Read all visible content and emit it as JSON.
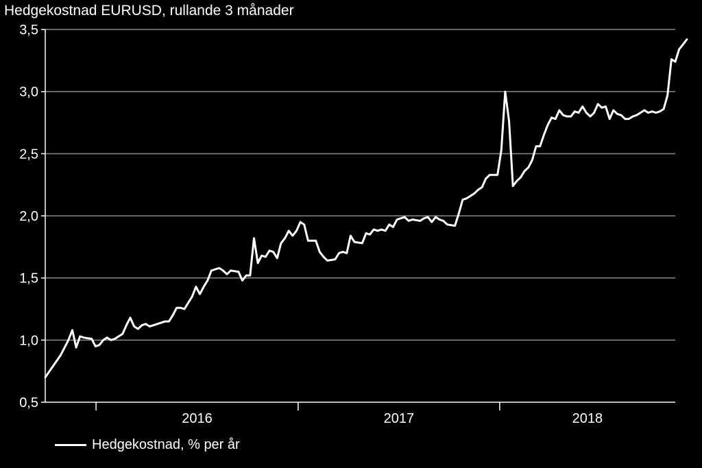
{
  "chart_data": {
    "type": "line",
    "title": "Hedgekostnad EURUSD, rullande 3 månader",
    "xlabel": "",
    "ylabel": "",
    "xlim": [
      "2015-10-01",
      "2018-11-15"
    ],
    "ylim": [
      0.5,
      3.5
    ],
    "y_ticks": [
      "0,5",
      "1,0",
      "1,5",
      "2,0",
      "2,5",
      "3,0",
      "3,5"
    ],
    "x_ticks": [
      "2016",
      "2017",
      "2018"
    ],
    "grid": "horizontal",
    "legend_placement": "bottom-left",
    "colors": {
      "background": "#000000",
      "line": "#ffffff",
      "grid": "#8c8c8c"
    },
    "series": [
      {
        "name": "Hedgekostnad, % per år",
        "points": [
          [
            "2015-10-01",
            0.7
          ],
          [
            "2015-10-15",
            0.79
          ],
          [
            "2015-10-29",
            0.88
          ],
          [
            "2015-11-12",
            1.0
          ],
          [
            "2015-11-19",
            1.08
          ],
          [
            "2015-11-26",
            0.94
          ],
          [
            "2015-12-03",
            1.03
          ],
          [
            "2015-12-10",
            1.02
          ],
          [
            "2015-12-24",
            1.01
          ],
          [
            "2015-12-31",
            0.95
          ],
          [
            "2016-01-07",
            0.96
          ],
          [
            "2016-01-14",
            1.0
          ],
          [
            "2016-01-21",
            1.02
          ],
          [
            "2016-01-28",
            1.0
          ],
          [
            "2016-02-04",
            1.01
          ],
          [
            "2016-02-11",
            1.03
          ],
          [
            "2016-02-18",
            1.05
          ],
          [
            "2016-02-25",
            1.12
          ],
          [
            "2016-03-03",
            1.18
          ],
          [
            "2016-03-10",
            1.11
          ],
          [
            "2016-03-17",
            1.09
          ],
          [
            "2016-03-24",
            1.12
          ],
          [
            "2016-03-31",
            1.13
          ],
          [
            "2016-04-07",
            1.11
          ],
          [
            "2016-04-21",
            1.13
          ],
          [
            "2016-05-05",
            1.15
          ],
          [
            "2016-05-12",
            1.15
          ],
          [
            "2016-05-19",
            1.2
          ],
          [
            "2016-05-26",
            1.26
          ],
          [
            "2016-06-02",
            1.26
          ],
          [
            "2016-06-09",
            1.25
          ],
          [
            "2016-06-16",
            1.3
          ],
          [
            "2016-06-23",
            1.35
          ],
          [
            "2016-06-30",
            1.43
          ],
          [
            "2016-07-07",
            1.37
          ],
          [
            "2016-07-14",
            1.43
          ],
          [
            "2016-07-21",
            1.48
          ],
          [
            "2016-07-28",
            1.56
          ],
          [
            "2016-08-04",
            1.57
          ],
          [
            "2016-08-11",
            1.58
          ],
          [
            "2016-08-18",
            1.56
          ],
          [
            "2016-08-25",
            1.53
          ],
          [
            "2016-09-01",
            1.56
          ],
          [
            "2016-09-15",
            1.55
          ],
          [
            "2016-09-22",
            1.48
          ],
          [
            "2016-09-29",
            1.52
          ],
          [
            "2016-10-06",
            1.52
          ],
          [
            "2016-10-13",
            1.82
          ],
          [
            "2016-10-20",
            1.62
          ],
          [
            "2016-10-27",
            1.68
          ],
          [
            "2016-11-03",
            1.67
          ],
          [
            "2016-11-10",
            1.72
          ],
          [
            "2016-11-17",
            1.71
          ],
          [
            "2016-11-24",
            1.66
          ],
          [
            "2016-12-01",
            1.78
          ],
          [
            "2016-12-08",
            1.82
          ],
          [
            "2016-12-15",
            1.88
          ],
          [
            "2016-12-22",
            1.84
          ],
          [
            "2016-12-29",
            1.88
          ],
          [
            "2017-01-05",
            1.95
          ],
          [
            "2017-01-12",
            1.93
          ],
          [
            "2017-01-19",
            1.8
          ],
          [
            "2017-02-02",
            1.8
          ],
          [
            "2017-02-09",
            1.71
          ],
          [
            "2017-02-16",
            1.67
          ],
          [
            "2017-02-23",
            1.64
          ],
          [
            "2017-03-09",
            1.65
          ],
          [
            "2017-03-16",
            1.7
          ],
          [
            "2017-03-23",
            1.71
          ],
          [
            "2017-03-30",
            1.7
          ],
          [
            "2017-04-06",
            1.84
          ],
          [
            "2017-04-13",
            1.79
          ],
          [
            "2017-04-27",
            1.78
          ],
          [
            "2017-05-04",
            1.86
          ],
          [
            "2017-05-11",
            1.85
          ],
          [
            "2017-05-18",
            1.89
          ],
          [
            "2017-05-25",
            1.88
          ],
          [
            "2017-06-01",
            1.89
          ],
          [
            "2017-06-08",
            1.88
          ],
          [
            "2017-06-15",
            1.93
          ],
          [
            "2017-06-22",
            1.91
          ],
          [
            "2017-06-29",
            1.97
          ],
          [
            "2017-07-06",
            1.98
          ],
          [
            "2017-07-13",
            1.99
          ],
          [
            "2017-07-20",
            1.96
          ],
          [
            "2017-07-27",
            1.97
          ],
          [
            "2017-08-10",
            1.96
          ],
          [
            "2017-08-17",
            1.98
          ],
          [
            "2017-08-24",
            1.99
          ],
          [
            "2017-08-31",
            1.95
          ],
          [
            "2017-09-07",
            1.99
          ],
          [
            "2017-09-14",
            1.97
          ],
          [
            "2017-09-21",
            1.96
          ],
          [
            "2017-09-28",
            1.93
          ],
          [
            "2017-10-12",
            1.92
          ],
          [
            "2017-10-19",
            2.02
          ],
          [
            "2017-10-26",
            2.13
          ],
          [
            "2017-11-02",
            2.14
          ],
          [
            "2017-11-09",
            2.16
          ],
          [
            "2017-11-16",
            2.18
          ],
          [
            "2017-11-23",
            2.21
          ],
          [
            "2017-11-30",
            2.23
          ],
          [
            "2017-12-07",
            2.3
          ],
          [
            "2017-12-14",
            2.33
          ],
          [
            "2017-12-28",
            2.33
          ],
          [
            "2018-01-04",
            2.53
          ],
          [
            "2018-01-11",
            3.0
          ],
          [
            "2018-01-18",
            2.76
          ],
          [
            "2018-01-25",
            2.24
          ],
          [
            "2018-02-01",
            2.28
          ],
          [
            "2018-02-08",
            2.31
          ],
          [
            "2018-02-15",
            2.36
          ],
          [
            "2018-02-22",
            2.39
          ],
          [
            "2018-03-01",
            2.45
          ],
          [
            "2018-03-08",
            2.56
          ],
          [
            "2018-03-15",
            2.56
          ],
          [
            "2018-03-22",
            2.65
          ],
          [
            "2018-03-29",
            2.73
          ],
          [
            "2018-04-05",
            2.79
          ],
          [
            "2018-04-12",
            2.78
          ],
          [
            "2018-04-19",
            2.85
          ],
          [
            "2018-04-26",
            2.81
          ],
          [
            "2018-05-03",
            2.8
          ],
          [
            "2018-05-10",
            2.8
          ],
          [
            "2018-05-17",
            2.84
          ],
          [
            "2018-05-24",
            2.83
          ],
          [
            "2018-05-31",
            2.88
          ],
          [
            "2018-06-07",
            2.83
          ],
          [
            "2018-06-14",
            2.8
          ],
          [
            "2018-06-21",
            2.83
          ],
          [
            "2018-06-28",
            2.9
          ],
          [
            "2018-07-05",
            2.87
          ],
          [
            "2018-07-12",
            2.88
          ],
          [
            "2018-07-19",
            2.78
          ],
          [
            "2018-07-26",
            2.85
          ],
          [
            "2018-08-02",
            2.82
          ],
          [
            "2018-08-09",
            2.81
          ],
          [
            "2018-08-16",
            2.78
          ],
          [
            "2018-08-23",
            2.78
          ],
          [
            "2018-08-30",
            2.8
          ],
          [
            "2018-09-06",
            2.81
          ],
          [
            "2018-09-13",
            2.83
          ],
          [
            "2018-09-20",
            2.85
          ],
          [
            "2018-09-27",
            2.83
          ],
          [
            "2018-10-04",
            2.84
          ],
          [
            "2018-10-11",
            2.83
          ],
          [
            "2018-10-18",
            2.84
          ],
          [
            "2018-10-25",
            2.86
          ],
          [
            "2018-11-01",
            2.97
          ],
          [
            "2018-11-08",
            3.26
          ],
          [
            "2018-11-15",
            3.24
          ],
          [
            "2018-11-22",
            3.34
          ],
          [
            "2018-11-29",
            3.38
          ],
          [
            "2018-12-06",
            3.42
          ]
        ]
      }
    ]
  }
}
